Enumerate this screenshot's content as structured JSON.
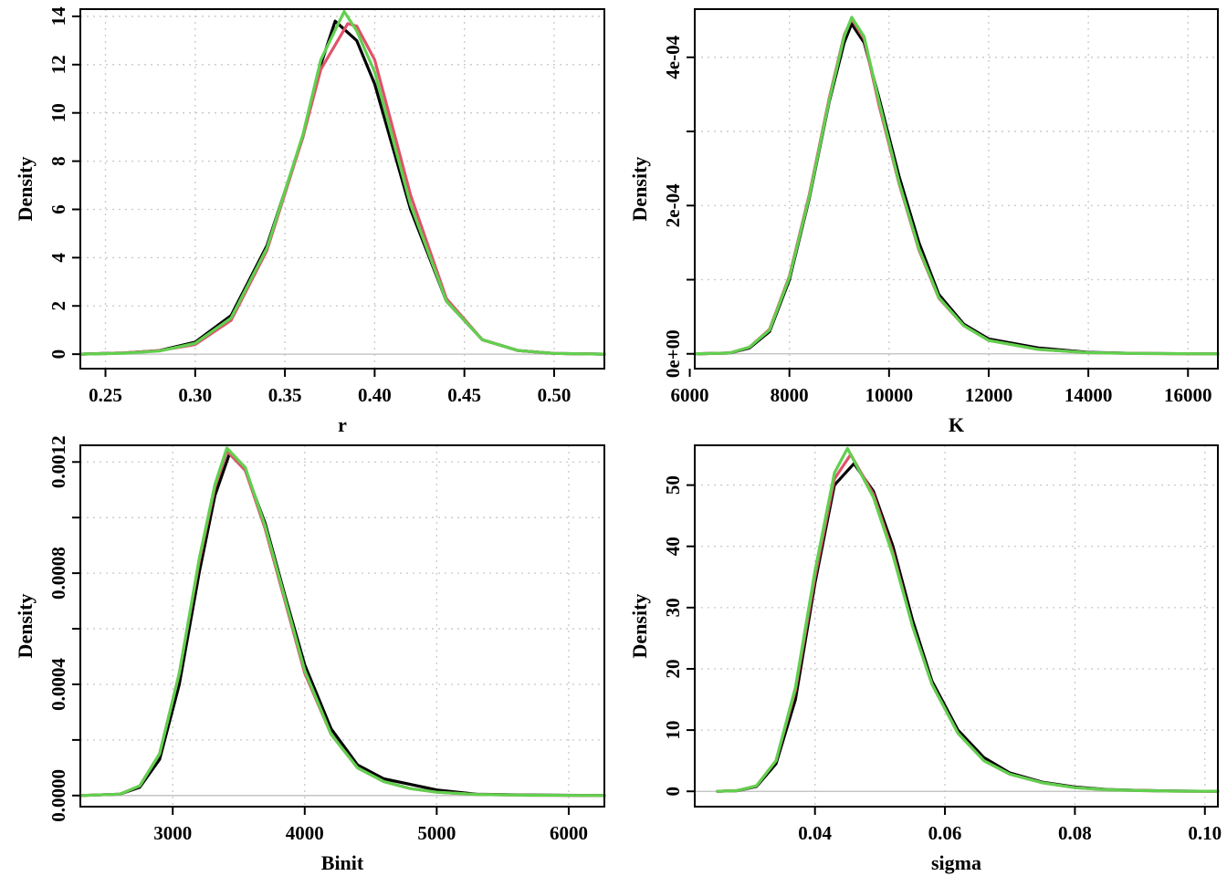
{
  "colors": {
    "chain1": "#000000",
    "chain2": "#DF536B",
    "chain3": "#61D04F"
  },
  "chart_data": [
    {
      "type": "line",
      "xlabel": "r",
      "ylabel": "Density",
      "xlim": [
        0.236,
        0.528
      ],
      "ylim": [
        -0.6,
        14.3
      ],
      "xticks": [
        0.25,
        0.3,
        0.35,
        0.4,
        0.45,
        0.5
      ],
      "xtick_labels": [
        "0.25",
        "0.30",
        "0.35",
        "0.40",
        "0.45",
        "0.50"
      ],
      "yticks": [
        0,
        2,
        4,
        6,
        8,
        10,
        12,
        14
      ],
      "ytick_labels": [
        "0",
        "2",
        "4",
        "6",
        "8",
        "10",
        "12",
        "14"
      ],
      "grid": true,
      "series": [
        {
          "color": "#000000",
          "x": [
            0.236,
            0.26,
            0.28,
            0.3,
            0.32,
            0.34,
            0.36,
            0.37,
            0.378,
            0.39,
            0.4,
            0.42,
            0.44,
            0.46,
            0.48,
            0.5,
            0.528
          ],
          "y": [
            0,
            0.05,
            0.15,
            0.5,
            1.6,
            4.5,
            9.0,
            12.0,
            13.8,
            13.0,
            11.2,
            6.0,
            2.2,
            0.6,
            0.15,
            0.03,
            0
          ]
        },
        {
          "color": "#DF536B",
          "x": [
            0.236,
            0.26,
            0.28,
            0.3,
            0.32,
            0.34,
            0.36,
            0.37,
            0.385,
            0.39,
            0.4,
            0.42,
            0.44,
            0.46,
            0.48,
            0.5,
            0.528
          ],
          "y": [
            0,
            0.05,
            0.15,
            0.4,
            1.4,
            4.3,
            9.0,
            11.8,
            13.7,
            13.6,
            12.2,
            6.6,
            2.3,
            0.6,
            0.15,
            0.03,
            0
          ]
        },
        {
          "color": "#61D04F",
          "x": [
            0.236,
            0.26,
            0.28,
            0.3,
            0.32,
            0.34,
            0.36,
            0.37,
            0.383,
            0.39,
            0.4,
            0.42,
            0.44,
            0.46,
            0.48,
            0.5,
            0.528
          ],
          "y": [
            0,
            0.04,
            0.13,
            0.45,
            1.5,
            4.4,
            9.1,
            12.2,
            14.2,
            13.4,
            11.7,
            6.2,
            2.2,
            0.6,
            0.15,
            0.03,
            0
          ]
        }
      ]
    },
    {
      "type": "line",
      "xlabel": "K",
      "ylabel": "Density",
      "xlim": [
        6100,
        16600
      ],
      "ylim": [
        -2e-05,
        0.000465
      ],
      "xticks": [
        6000,
        8000,
        10000,
        12000,
        14000,
        16000
      ],
      "xtick_labels": [
        "6000",
        "8000",
        "10000",
        "12000",
        "14000",
        "16000"
      ],
      "yticks": [
        0,
        0.0001,
        0.0002,
        0.0003,
        0.0004
      ],
      "ytick_labels": [
        "0e+00",
        "",
        "2e-04",
        "",
        "4e-04"
      ],
      "grid": true,
      "series": [
        {
          "color": "#000000",
          "x": [
            6100,
            6800,
            7200,
            7600,
            8000,
            8400,
            8800,
            9100,
            9250,
            9500,
            9800,
            10200,
            10600,
            11000,
            11500,
            12000,
            13000,
            14000,
            15000,
            16600
          ],
          "y": [
            0,
            1e-06,
            8e-06,
            3e-05,
            0.0001,
            0.00021,
            0.00034,
            0.00042,
            0.000445,
            0.00042,
            0.000345,
            0.00024,
            0.00015,
            8e-05,
            4e-05,
            2e-05,
            8e-06,
            2e-06,
            5e-07,
            0
          ]
        },
        {
          "color": "#DF536B",
          "x": [
            6100,
            6800,
            7200,
            7600,
            8000,
            8400,
            8800,
            9100,
            9250,
            9500,
            9800,
            10200,
            10600,
            11000,
            11500,
            12000,
            13000,
            14000,
            15000,
            16600
          ],
          "y": [
            0,
            1e-06,
            9e-06,
            3.3e-05,
            0.000105,
            0.000215,
            0.000345,
            0.00043,
            0.000452,
            0.000425,
            0.000335,
            0.00023,
            0.00014,
            7.5e-05,
            3.8e-05,
            1.8e-05,
            6e-06,
            1.5e-06,
            4e-07,
            0
          ]
        },
        {
          "color": "#61D04F",
          "x": [
            6100,
            6800,
            7200,
            7600,
            8000,
            8400,
            8800,
            9100,
            9250,
            9500,
            9800,
            10200,
            10600,
            11000,
            11500,
            12000,
            13000,
            14000,
            15000,
            16600
          ],
          "y": [
            0,
            1e-06,
            9e-06,
            3.2e-05,
            0.000103,
            0.000212,
            0.000342,
            0.000428,
            0.000454,
            0.000428,
            0.00034,
            0.000232,
            0.000142,
            7.6e-05,
            3.8e-05,
            1.8e-05,
            6e-06,
            1.5e-06,
            4e-07,
            0
          ]
        }
      ]
    },
    {
      "type": "line",
      "xlabel": "Binit",
      "ylabel": "Density",
      "xlim": [
        2300,
        6270
      ],
      "ylim": [
        -4e-05,
        0.00126
      ],
      "xticks": [
        3000,
        4000,
        5000,
        6000
      ],
      "xtick_labels": [
        "3000",
        "4000",
        "5000",
        "6000"
      ],
      "yticks": [
        0,
        0.0002,
        0.0004,
        0.0006,
        0.0008,
        0.001,
        0.0012
      ],
      "ytick_labels": [
        "0.0000",
        "",
        "0.0004",
        "",
        "0.0008",
        "",
        "0.0012"
      ],
      "grid": true,
      "series": [
        {
          "color": "#000000",
          "x": [
            2300,
            2600,
            2750,
            2900,
            3050,
            3200,
            3320,
            3430,
            3550,
            3700,
            3850,
            4000,
            4200,
            4400,
            4600,
            4800,
            5000,
            5300,
            5700,
            6270
          ],
          "y": [
            0,
            5e-06,
            3e-05,
            0.00013,
            0.0004,
            0.0008,
            0.00108,
            0.00123,
            0.00117,
            0.00098,
            0.00072,
            0.00047,
            0.00024,
            0.00011,
            6e-05,
            4e-05,
            2e-05,
            5e-06,
            2e-06,
            0
          ]
        },
        {
          "color": "#DF536B",
          "x": [
            2300,
            2600,
            2750,
            2900,
            3050,
            3200,
            3320,
            3410,
            3550,
            3700,
            3850,
            4000,
            4200,
            4400,
            4600,
            4800,
            5000,
            5300,
            5700,
            6270
          ],
          "y": [
            0,
            5e-06,
            3.5e-05,
            0.00015,
            0.00044,
            0.00084,
            0.00111,
            0.00124,
            0.00117,
            0.00096,
            0.0007,
            0.00044,
            0.00022,
            0.0001,
            5e-05,
            2.5e-05,
            1.2e-05,
            4e-06,
            1e-06,
            0
          ]
        },
        {
          "color": "#61D04F",
          "x": [
            2300,
            2600,
            2750,
            2900,
            3050,
            3200,
            3320,
            3410,
            3550,
            3700,
            3850,
            4000,
            4200,
            4400,
            4600,
            4800,
            5000,
            5300,
            5700,
            6270
          ],
          "y": [
            0,
            5e-06,
            3.5e-05,
            0.00015,
            0.00044,
            0.00085,
            0.00112,
            0.00125,
            0.00118,
            0.00097,
            0.00071,
            0.00045,
            0.00022,
            0.0001,
            5e-05,
            2.5e-05,
            1.2e-05,
            4e-06,
            1e-06,
            0
          ]
        }
      ]
    },
    {
      "type": "line",
      "xlabel": "sigma",
      "ylabel": "Density",
      "xlim": [
        0.0215,
        0.102
      ],
      "ylim": [
        -2.5,
        56.5
      ],
      "xticks": [
        0.04,
        0.06,
        0.08,
        0.1
      ],
      "xtick_labels": [
        "0.04",
        "0.06",
        "0.08",
        "0.10"
      ],
      "yticks": [
        0,
        10,
        20,
        30,
        40,
        50
      ],
      "ytick_labels": [
        "0",
        "10",
        "20",
        "30",
        "40",
        "50"
      ],
      "grid": true,
      "series": [
        {
          "color": "#000000",
          "x": [
            0.025,
            0.028,
            0.031,
            0.034,
            0.037,
            0.04,
            0.043,
            0.046,
            0.049,
            0.052,
            0.055,
            0.058,
            0.062,
            0.066,
            0.07,
            0.075,
            0.08,
            0.085,
            0.09,
            0.095,
            0.102
          ],
          "y": [
            0,
            0.1,
            0.8,
            4.5,
            15,
            34,
            50,
            53.5,
            49,
            40,
            28,
            18,
            10,
            5.5,
            3,
            1.5,
            0.7,
            0.3,
            0.15,
            0.05,
            0
          ]
        },
        {
          "color": "#DF536B",
          "x": [
            0.025,
            0.028,
            0.031,
            0.034,
            0.037,
            0.04,
            0.043,
            0.0455,
            0.049,
            0.052,
            0.055,
            0.058,
            0.062,
            0.066,
            0.07,
            0.075,
            0.08,
            0.085,
            0.09,
            0.095,
            0.102
          ],
          "y": [
            0,
            0.1,
            0.9,
            5,
            16.5,
            35,
            51,
            55,
            48.5,
            39,
            27,
            17.5,
            9.5,
            5,
            2.8,
            1.4,
            0.6,
            0.25,
            0.12,
            0.04,
            0
          ]
        },
        {
          "color": "#61D04F",
          "x": [
            0.025,
            0.028,
            0.031,
            0.034,
            0.037,
            0.04,
            0.043,
            0.045,
            0.049,
            0.052,
            0.055,
            0.058,
            0.062,
            0.066,
            0.07,
            0.075,
            0.08,
            0.085,
            0.09,
            0.095,
            0.102
          ],
          "y": [
            0,
            0.1,
            0.9,
            5,
            17,
            36,
            52,
            56,
            48,
            38.5,
            27,
            17.5,
            9.5,
            5,
            2.8,
            1.4,
            0.6,
            0.25,
            0.12,
            0.04,
            0
          ]
        }
      ]
    }
  ]
}
